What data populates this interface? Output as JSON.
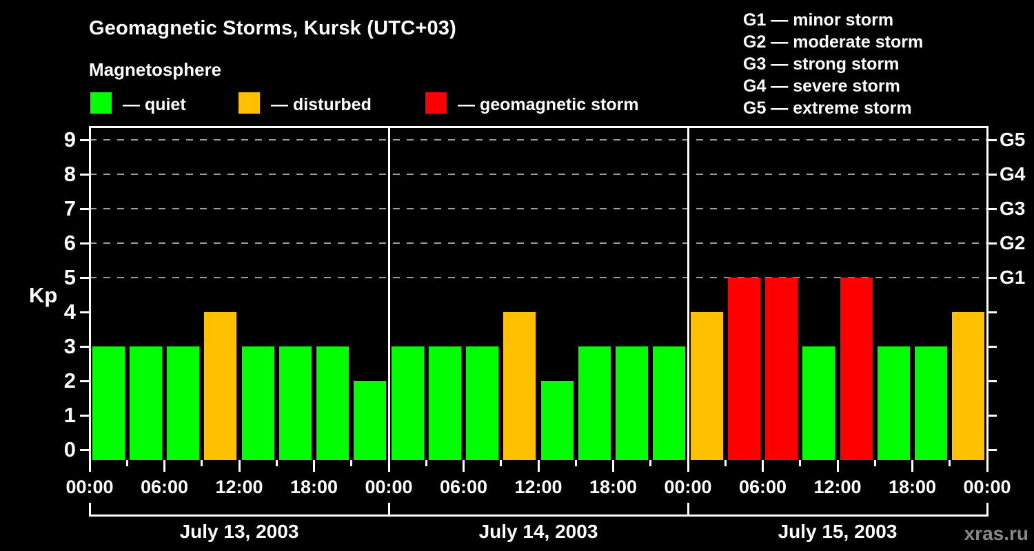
{
  "title": "Geomagnetic Storms, Kursk (UTC+03)",
  "subtitle": "Magnetosphere",
  "watermark": "xras.ru",
  "axes": {
    "kp_label": "Kp",
    "y_ticks": [
      0,
      1,
      2,
      3,
      4,
      5,
      6,
      7,
      8,
      9
    ],
    "gridline_levels": [
      5,
      6,
      7,
      8,
      9
    ],
    "right_ticks": [
      {
        "kp": 5,
        "label": "G1"
      },
      {
        "kp": 6,
        "label": "G2"
      },
      {
        "kp": 7,
        "label": "G3"
      },
      {
        "kp": 8,
        "label": "G4"
      },
      {
        "kp": 9,
        "label": "G5"
      }
    ],
    "time_labels": [
      "00:00",
      "06:00",
      "12:00",
      "18:00"
    ],
    "end_time_label": "00:00"
  },
  "legend": {
    "items": [
      {
        "key": "quiet",
        "color": "#00ff00",
        "label": "— quiet"
      },
      {
        "key": "disturbed",
        "color": "#ffc000",
        "label": "— disturbed"
      },
      {
        "key": "storm",
        "color": "#ff0000",
        "label": "— geomagnetic storm"
      }
    ]
  },
  "storm_scale": [
    "G1 — minor storm",
    "G2 — moderate storm",
    "G3 — strong storm",
    "G4 — severe storm",
    "G5 — extreme storm"
  ],
  "chart_data": {
    "type": "bar",
    "title": "Geomagnetic Storms, Kursk (UTC+03)",
    "subtitle": "Magnetosphere",
    "ylabel": "Kp",
    "ylim": [
      0,
      9
    ],
    "grid": "dashed horizontal lines at Kp 5,6,7,8,9 (G1–G5 levels)",
    "legend_position": "top-left",
    "interval_hours": 3,
    "colors": {
      "quiet": "#00ff00",
      "disturbed": "#ffc000",
      "storm": "#ff0000"
    },
    "color_rule": {
      "quiet_max_kp": 3,
      "disturbed_kp": 4,
      "storm_min_kp": 5
    },
    "days": [
      {
        "date": "July 13, 2003",
        "kp": [
          3,
          3,
          3,
          4,
          3,
          3,
          3,
          2
        ]
      },
      {
        "date": "July 14, 2003",
        "kp": [
          3,
          3,
          3,
          4,
          2,
          3,
          3,
          3
        ]
      },
      {
        "date": "July 15, 2003",
        "kp": [
          4,
          5,
          5,
          3,
          5,
          3,
          3,
          4
        ]
      }
    ]
  }
}
